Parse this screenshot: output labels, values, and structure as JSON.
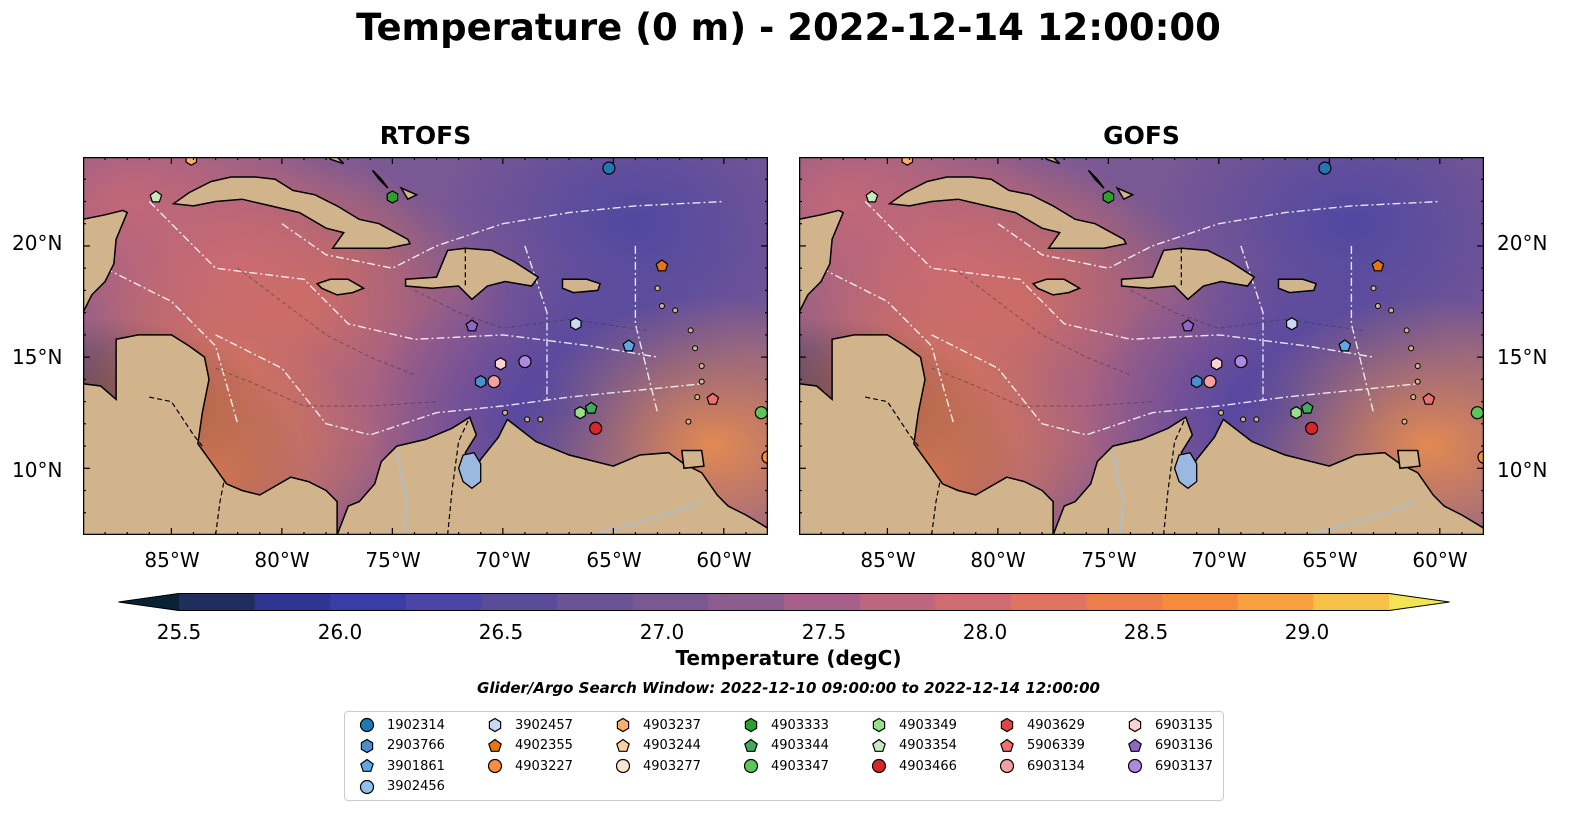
{
  "title": "Temperature (0 m) - 2022-12-14 12:00:00",
  "panels": [
    {
      "id": "rtofs",
      "title": "RTOFS"
    },
    {
      "id": "gofs",
      "title": "GOFS"
    }
  ],
  "map": {
    "lon_range": [
      -89,
      -58
    ],
    "lat_range": [
      7,
      24
    ],
    "lat_ticks": [
      "20°N",
      "15°N",
      "10°N"
    ],
    "lon_ticks": [
      "85°W",
      "80°W",
      "75°W",
      "70°W",
      "65°W",
      "60°W"
    ],
    "land_color": "#d2b48c",
    "lake_color": "#9ab8e0"
  },
  "colorbar": {
    "label": "Temperature (degC)",
    "ticks": [
      "25.5",
      "26.0",
      "26.5",
      "27.0",
      "27.5",
      "28.0",
      "28.5",
      "29.0"
    ],
    "colors": [
      "#0b2236",
      "#1f2e5e",
      "#2f3591",
      "#3b3da6",
      "#4a45a6",
      "#5b4c9a",
      "#6a5496",
      "#7a5894",
      "#8d5d90",
      "#a6608a",
      "#bd6680",
      "#cf6c72",
      "#df7460",
      "#ec7e4c",
      "#f58b3c",
      "#f7a23c",
      "#f5c146",
      "#f2e454"
    ]
  },
  "search_window": "Glider/Argo Search Window: 2022-12-10 09:00:00 to 2022-12-14 12:00:00",
  "legend": [
    {
      "id": "1902314",
      "color": "#1f77b4",
      "shape": "circle"
    },
    {
      "id": "2903766",
      "color": "#4a8fcf",
      "shape": "hexagon"
    },
    {
      "id": "3901861",
      "color": "#5fa8e6",
      "shape": "pentagon"
    },
    {
      "id": "3902456",
      "color": "#8fc1ee",
      "shape": "circle"
    },
    {
      "id": "3902457",
      "color": "#c6dbef",
      "shape": "hexagon"
    },
    {
      "id": "4902355",
      "color": "#e6760e",
      "shape": "pentagon"
    },
    {
      "id": "4903227",
      "color": "#fd8d3c",
      "shape": "circle"
    },
    {
      "id": "4903237",
      "color": "#fdae6b",
      "shape": "hexagon"
    },
    {
      "id": "4903244",
      "color": "#fdd0a2",
      "shape": "pentagon"
    },
    {
      "id": "4903277",
      "color": "#fee6ce",
      "shape": "circle"
    },
    {
      "id": "4903333",
      "color": "#2ca02c",
      "shape": "hexagon"
    },
    {
      "id": "4903344",
      "color": "#41ab5d",
      "shape": "pentagon"
    },
    {
      "id": "4903347",
      "color": "#5ac75a",
      "shape": "circle"
    },
    {
      "id": "4903349",
      "color": "#98df8a",
      "shape": "hexagon"
    },
    {
      "id": "4903354",
      "color": "#c7e9c0",
      "shape": "pentagon"
    },
    {
      "id": "4903466",
      "color": "#d62728",
      "shape": "circle"
    },
    {
      "id": "4903629",
      "color": "#e04545",
      "shape": "hexagon"
    },
    {
      "id": "5906339",
      "color": "#f07070",
      "shape": "pentagon"
    },
    {
      "id": "6903134",
      "color": "#f4a0a0",
      "shape": "circle"
    },
    {
      "id": "6903135",
      "color": "#fcd3d3",
      "shape": "hexagon"
    },
    {
      "id": "6903136",
      "color": "#8e67c9",
      "shape": "pentagon"
    },
    {
      "id": "6903137",
      "color": "#b088e0",
      "shape": "circle"
    }
  ],
  "floats": [
    {
      "id": "4903237",
      "lon": -84.1,
      "lat": 23.9
    },
    {
      "id": "4903354",
      "lon": -85.7,
      "lat": 22.2
    },
    {
      "id": "4903333",
      "lon": -75.0,
      "lat": 22.2
    },
    {
      "id": "1902314",
      "lon": -65.2,
      "lat": 23.5
    },
    {
      "id": "4902355",
      "lon": -62.8,
      "lat": 19.1
    },
    {
      "id": "3902457",
      "lon": -66.7,
      "lat": 16.5
    },
    {
      "id": "6903136",
      "lon": -71.4,
      "lat": 16.4
    },
    {
      "id": "3901861",
      "lon": -64.3,
      "lat": 15.5
    },
    {
      "id": "6903137",
      "lon": -69.0,
      "lat": 14.8
    },
    {
      "id": "6903135",
      "lon": -70.1,
      "lat": 14.7
    },
    {
      "id": "6903134",
      "lon": -70.4,
      "lat": 13.9
    },
    {
      "id": "2903766",
      "lon": -71.0,
      "lat": 13.9
    },
    {
      "id": "5906339",
      "lon": -60.5,
      "lat": 13.1
    },
    {
      "id": "4903344",
      "lon": -66.0,
      "lat": 12.7
    },
    {
      "id": "4903349",
      "lon": -66.5,
      "lat": 12.5
    },
    {
      "id": "4903466",
      "lon": -65.8,
      "lat": 11.8
    },
    {
      "id": "4903347",
      "lon": -58.3,
      "lat": 12.5
    },
    {
      "id": "4903227",
      "lon": -58.0,
      "lat": 10.5
    }
  ]
}
